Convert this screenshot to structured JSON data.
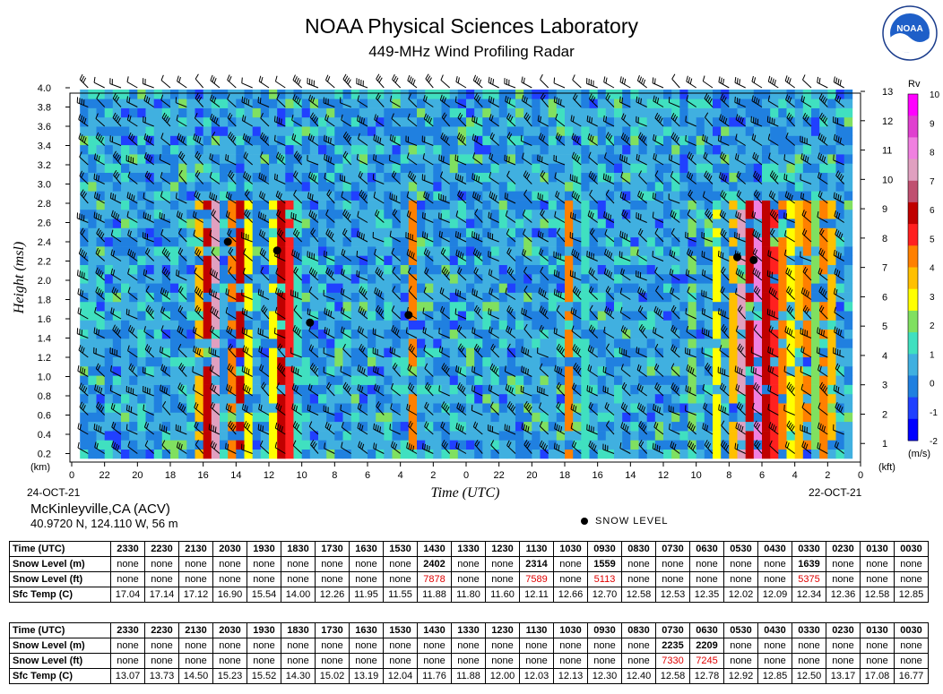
{
  "header": {
    "title": "NOAA Physical Sciences Laboratory",
    "subtitle": "449-MHz Wind Profiling Radar",
    "logo_text": "NOAA"
  },
  "station": {
    "name": "McKinleyville,CA (ACV)",
    "coords": "40.9720 N, 124.110 W, 56 m"
  },
  "legend": {
    "snow_level": "SNOW LEVEL"
  },
  "chart_data": {
    "type": "heatmap",
    "xlabel": "Time (UTC)",
    "ylabel": "Height (msl)",
    "y_left_unit": "(km)",
    "y_right_unit": "(kft)",
    "x_ticks": [
      "0",
      "22",
      "20",
      "18",
      "16",
      "14",
      "12",
      "10",
      "8",
      "6",
      "4",
      "2",
      "0",
      "22",
      "20",
      "18",
      "16",
      "14",
      "12",
      "10",
      "8",
      "6",
      "4",
      "2",
      "0"
    ],
    "x_date_left": "24-OCT-21",
    "x_date_right": "22-OCT-21",
    "y_left_ticks": [
      "0.2",
      "0.4",
      "0.6",
      "0.8",
      "1.0",
      "1.2",
      "1.4",
      "1.6",
      "1.8",
      "2.0",
      "2.2",
      "2.4",
      "2.6",
      "2.8",
      "3.0",
      "3.2",
      "3.4",
      "3.6",
      "3.8",
      "4.0"
    ],
    "y_right_ticks": [
      "1",
      "2",
      "3",
      "4",
      "5",
      "6",
      "7",
      "8",
      "9",
      "10",
      "11",
      "12",
      "13"
    ],
    "colorbar": {
      "label": "Rv",
      "unit": "(m/s)",
      "ticks": [
        "10",
        "9",
        "8",
        "7",
        "6",
        "5",
        "4",
        "3",
        "2",
        "1",
        "0",
        "-1",
        "-2"
      ],
      "colors": [
        "#ff00ff",
        "#e040d0",
        "#f080e0",
        "#e0a0c0",
        "#c05070",
        "#c00000",
        "#ff2020",
        "#ff8000",
        "#ffc000",
        "#ffff00",
        "#80e060",
        "#40e0c0",
        "#40b0e0",
        "#2080e0",
        "#2040ff",
        "#0000ff"
      ]
    },
    "snow_level_points": [
      {
        "hour": 14.5,
        "km": 2.4
      },
      {
        "hour": 11.5,
        "km": 2.31
      },
      {
        "hour": 9.5,
        "km": 1.56
      },
      {
        "hour": 3.5,
        "km": 1.64
      },
      {
        "hour": -16.5,
        "km": 2.24
      },
      {
        "hour": -17.5,
        "km": 2.21
      }
    ]
  },
  "tables": [
    {
      "rows": [
        {
          "label": "Time (UTC)",
          "values": [
            "2330",
            "2230",
            "2130",
            "2030",
            "1930",
            "1830",
            "1730",
            "1630",
            "1530",
            "1430",
            "1330",
            "1230",
            "1130",
            "1030",
            "0930",
            "0830",
            "0730",
            "0630",
            "0530",
            "0430",
            "0330",
            "0230",
            "0130",
            "0030"
          ]
        },
        {
          "label": "Snow Level (m)",
          "values": [
            "none",
            "none",
            "none",
            "none",
            "none",
            "none",
            "none",
            "none",
            "none",
            "2402",
            "none",
            "none",
            "2314",
            "none",
            "1559",
            "none",
            "none",
            "none",
            "none",
            "none",
            "1639",
            "none",
            "none",
            "none"
          ]
        },
        {
          "label": "Snow Level (ft)",
          "values": [
            "none",
            "none",
            "none",
            "none",
            "none",
            "none",
            "none",
            "none",
            "none",
            "7878",
            "none",
            "none",
            "7589",
            "none",
            "5113",
            "none",
            "none",
            "none",
            "none",
            "none",
            "5375",
            "none",
            "none",
            "none"
          ]
        },
        {
          "label": "Sfc Temp (C)",
          "values": [
            "17.04",
            "17.14",
            "17.12",
            "16.90",
            "15.54",
            "14.00",
            "12.26",
            "11.95",
            "11.55",
            "11.88",
            "11.80",
            "11.60",
            "12.11",
            "12.66",
            "12.70",
            "12.58",
            "12.53",
            "12.35",
            "12.02",
            "12.09",
            "12.34",
            "12.36",
            "12.58",
            "12.85"
          ]
        }
      ]
    },
    {
      "rows": [
        {
          "label": "Time (UTC)",
          "values": [
            "2330",
            "2230",
            "2130",
            "2030",
            "1930",
            "1830",
            "1730",
            "1630",
            "1530",
            "1430",
            "1330",
            "1230",
            "1130",
            "1030",
            "0930",
            "0830",
            "0730",
            "0630",
            "0530",
            "0430",
            "0330",
            "0230",
            "0130",
            "0030"
          ]
        },
        {
          "label": "Snow Level (m)",
          "values": [
            "none",
            "none",
            "none",
            "none",
            "none",
            "none",
            "none",
            "none",
            "none",
            "none",
            "none",
            "none",
            "none",
            "none",
            "none",
            "none",
            "2235",
            "2209",
            "none",
            "none",
            "none",
            "none",
            "none",
            "none"
          ]
        },
        {
          "label": "Snow Level (ft)",
          "values": [
            "none",
            "none",
            "none",
            "none",
            "none",
            "none",
            "none",
            "none",
            "none",
            "none",
            "none",
            "none",
            "none",
            "none",
            "none",
            "none",
            "7330",
            "7245",
            "none",
            "none",
            "none",
            "none",
            "none",
            "none"
          ]
        },
        {
          "label": "Sfc Temp (C)",
          "values": [
            "13.07",
            "13.73",
            "14.50",
            "15.23",
            "15.52",
            "14.30",
            "15.02",
            "13.19",
            "12.04",
            "11.76",
            "11.88",
            "12.00",
            "12.03",
            "12.13",
            "12.30",
            "12.40",
            "12.58",
            "12.78",
            "12.92",
            "12.85",
            "12.50",
            "13.17",
            "17.08",
            "16.77"
          ]
        }
      ]
    }
  ]
}
